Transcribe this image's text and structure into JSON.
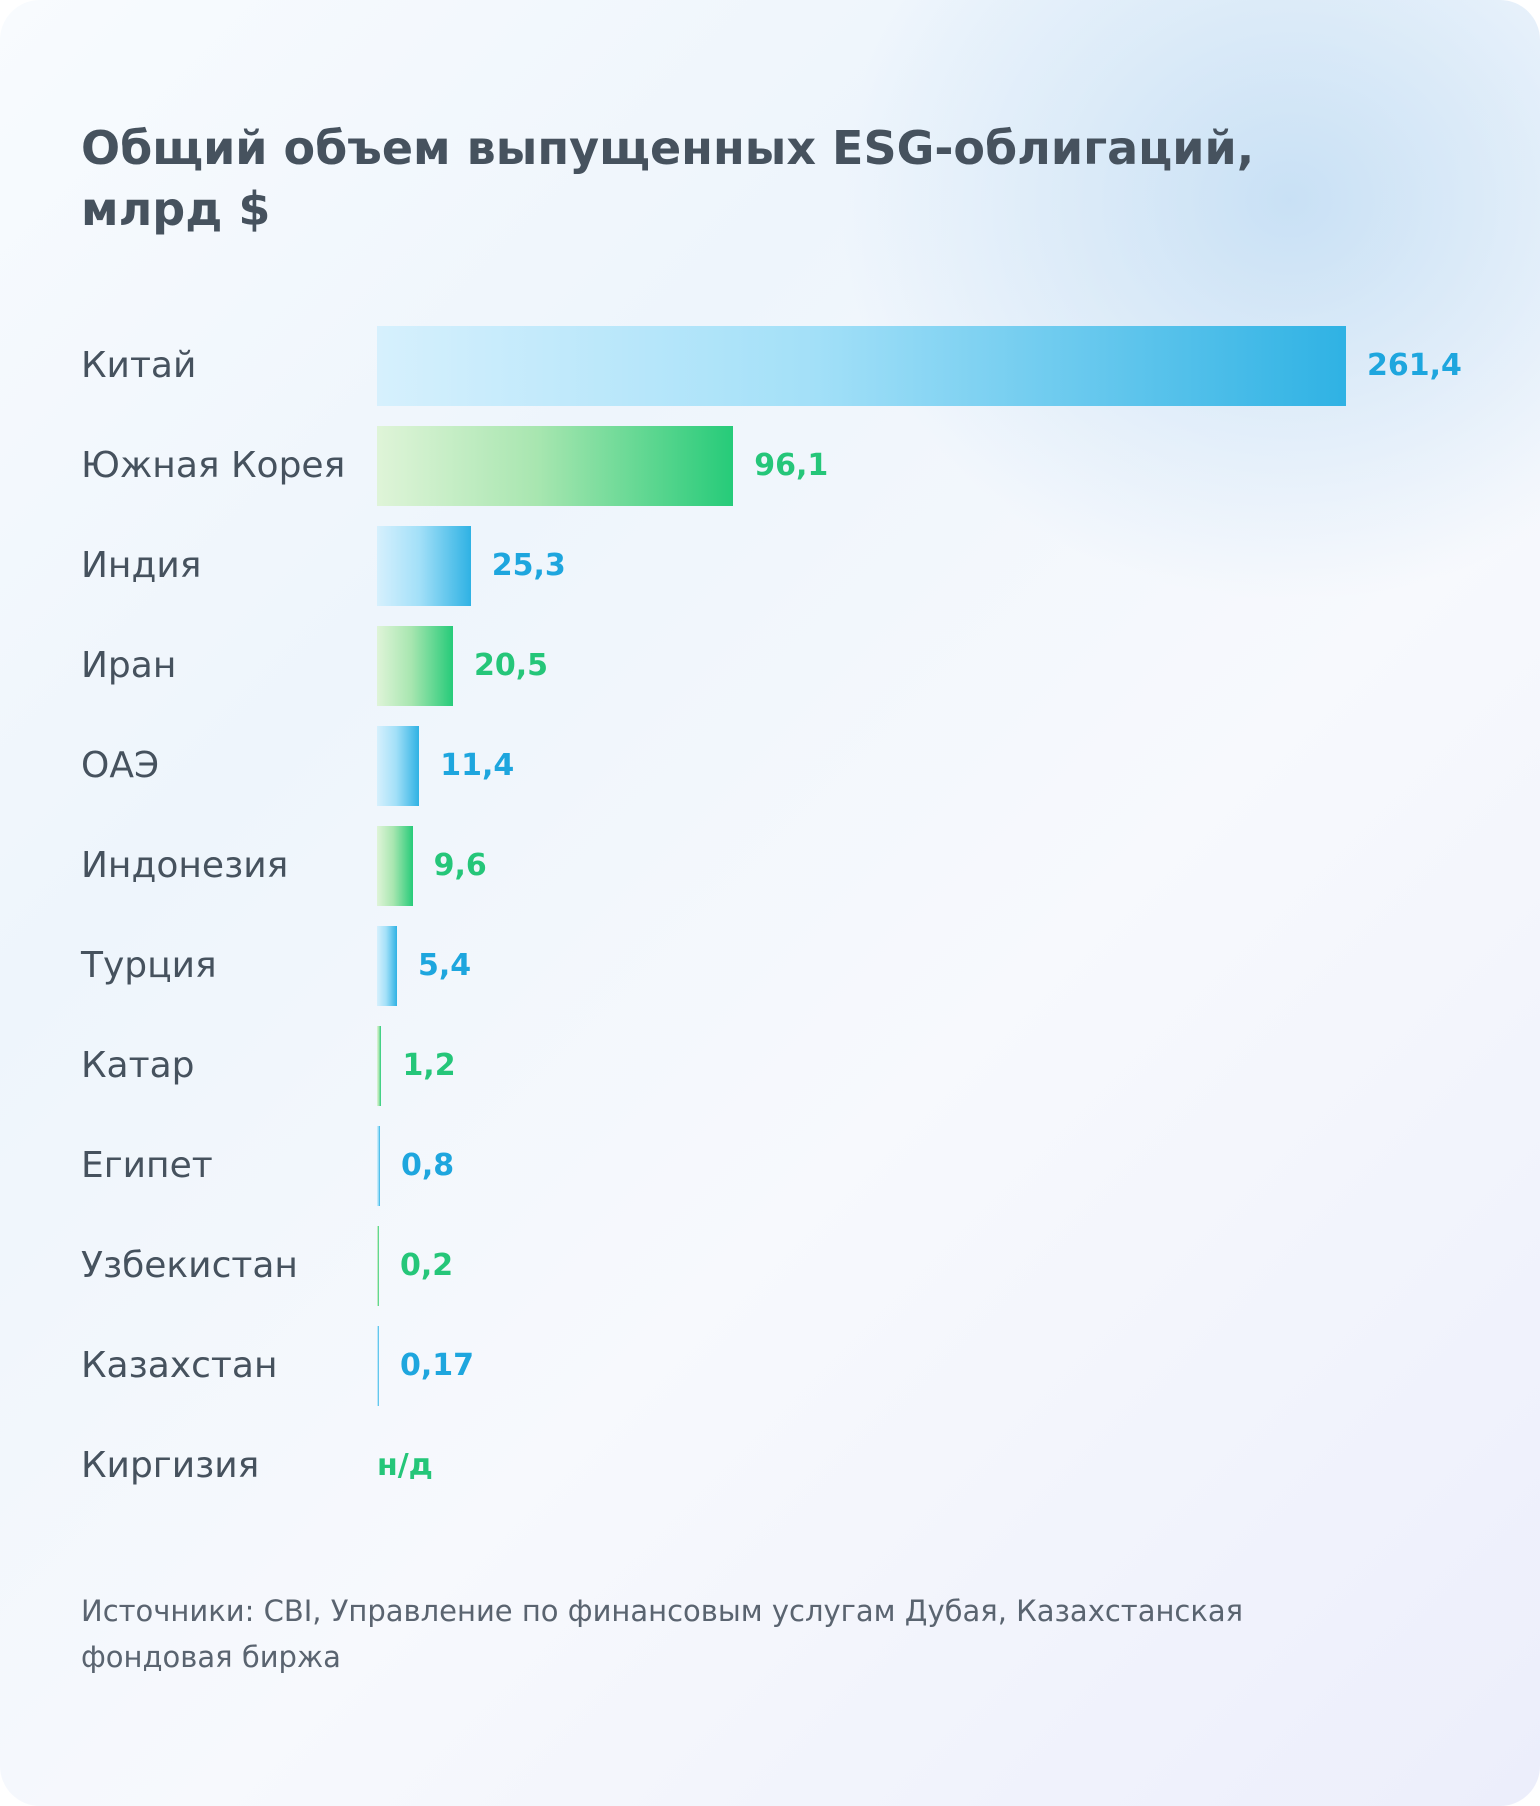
{
  "chart_data": {
    "type": "bar",
    "orientation": "horizontal",
    "title": "Общий объем выпущенных ESG-облигаций, млрд $",
    "title_lines": [
      "Общий объем выпущенных ESG-облигаций,",
      "млрд $"
    ],
    "categories": [
      "Китай",
      "Южная Корея",
      "Индия",
      "Иран",
      "ОАЭ",
      "Индонезия",
      "Турция",
      "Катар",
      "Египет",
      "Узбекистан",
      "Казахстан",
      "Киргизия"
    ],
    "values": [
      261.4,
      96.1,
      25.3,
      20.5,
      11.4,
      9.6,
      5.4,
      1.2,
      0.8,
      0.2,
      0.17,
      null
    ],
    "value_labels": [
      "261,4",
      "96,1",
      "25,3",
      "20,5",
      "11,4",
      "9,6",
      "5,4",
      "1,2",
      "0,8",
      "0,2",
      "0,17",
      "н/д"
    ],
    "colors": [
      "blue",
      "green",
      "blue",
      "green",
      "blue",
      "green",
      "blue",
      "green",
      "blue",
      "green",
      "blue",
      "green"
    ],
    "palette": {
      "blue": "#1ea6de",
      "green": "#25c679"
    },
    "xlabel": "",
    "ylabel": "",
    "xlim": [
      0,
      261.4
    ],
    "grid": false
  },
  "footer": {
    "source_lines": [
      "Источники: CBI, Управление по финансовым услугам Дубая, Казахстанская",
      "фондовая биржа"
    ]
  }
}
